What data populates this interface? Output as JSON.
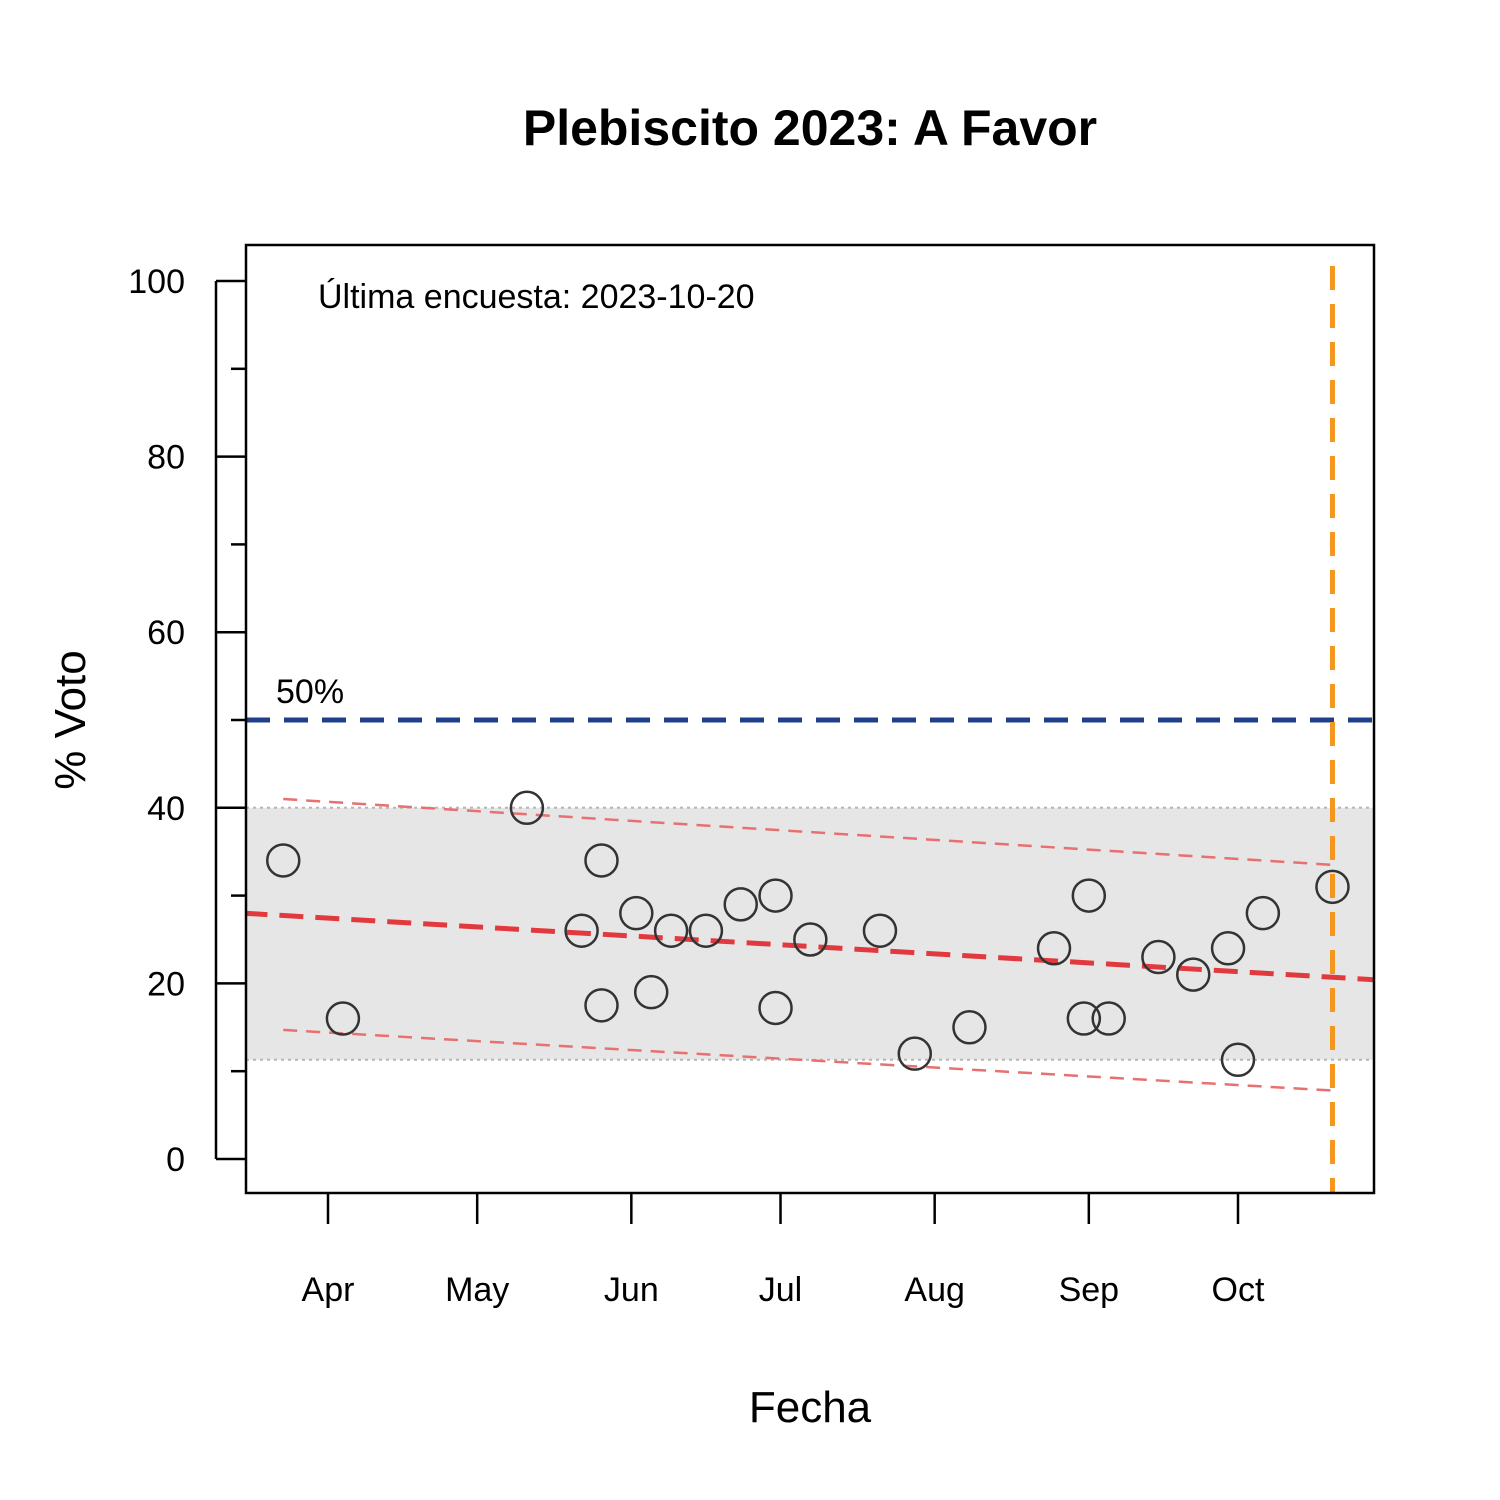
{
  "chart_data": {
    "type": "scatter",
    "title": "Plebiscito 2023: A Favor",
    "xlabel": "Fecha",
    "ylabel": "% Voto",
    "ylim": [
      0,
      100
    ],
    "yticks": [
      0,
      20,
      40,
      60,
      80,
      100
    ],
    "xlim": [
      "2023-03-15",
      "2023-11-01"
    ],
    "xticks": [
      {
        "date": "2023-04-01",
        "label": "Apr"
      },
      {
        "date": "2023-05-01",
        "label": "May"
      },
      {
        "date": "2023-06-01",
        "label": "Jun"
      },
      {
        "date": "2023-07-01",
        "label": "Jul"
      },
      {
        "date": "2023-08-01",
        "label": "Aug"
      },
      {
        "date": "2023-09-01",
        "label": "Sep"
      },
      {
        "date": "2023-10-01",
        "label": "Oct"
      }
    ],
    "points": [
      {
        "x": "2023-03-23",
        "y": 34
      },
      {
        "x": "2023-04-04",
        "y": 16
      },
      {
        "x": "2023-05-11",
        "y": 40
      },
      {
        "x": "2023-05-22",
        "y": 26
      },
      {
        "x": "2023-05-26",
        "y": 34
      },
      {
        "x": "2023-05-26",
        "y": 17.5
      },
      {
        "x": "2023-06-02",
        "y": 28
      },
      {
        "x": "2023-06-05",
        "y": 19
      },
      {
        "x": "2023-06-09",
        "y": 26
      },
      {
        "x": "2023-06-16",
        "y": 26
      },
      {
        "x": "2023-06-23",
        "y": 29
      },
      {
        "x": "2023-06-30",
        "y": 30
      },
      {
        "x": "2023-06-30",
        "y": 17.2
      },
      {
        "x": "2023-07-07",
        "y": 25
      },
      {
        "x": "2023-07-21",
        "y": 26
      },
      {
        "x": "2023-07-28",
        "y": 12
      },
      {
        "x": "2023-08-08",
        "y": 15
      },
      {
        "x": "2023-08-25",
        "y": 24
      },
      {
        "x": "2023-08-31",
        "y": 16
      },
      {
        "x": "2023-09-01",
        "y": 30
      },
      {
        "x": "2023-09-05",
        "y": 16
      },
      {
        "x": "2023-09-15",
        "y": 23
      },
      {
        "x": "2023-09-22",
        "y": 21
      },
      {
        "x": "2023-09-29",
        "y": 24
      },
      {
        "x": "2023-10-01",
        "y": 11.3
      },
      {
        "x": "2023-10-06",
        "y": 28
      },
      {
        "x": "2023-10-20",
        "y": 31
      }
    ],
    "trend": {
      "start": {
        "x": "2023-03-15",
        "y": 28
      },
      "end": {
        "x": "2023-11-01",
        "y": 20.3
      }
    },
    "upper_band": {
      "start": {
        "x": "2023-03-23",
        "y": 41
      },
      "end": {
        "x": "2023-10-20",
        "y": 33.5
      }
    },
    "lower_band": {
      "start": {
        "x": "2023-03-23",
        "y": 14.7
      },
      "end": {
        "x": "2023-10-20",
        "y": 7.8
      }
    },
    "range_shade": {
      "ymin": 11.3,
      "ymax": 40
    },
    "reference_line": {
      "y": 50,
      "label": "50%"
    },
    "last_poll_line": {
      "x": "2023-10-20"
    },
    "annotation": "Última encuesta: 2023-10-20",
    "colors": {
      "points": "#333333",
      "trend": "#e2393f",
      "band": "#e87070",
      "reference": "#1f3f8a",
      "last_poll": "#f5961e",
      "shade": "#e6e6e6"
    }
  }
}
